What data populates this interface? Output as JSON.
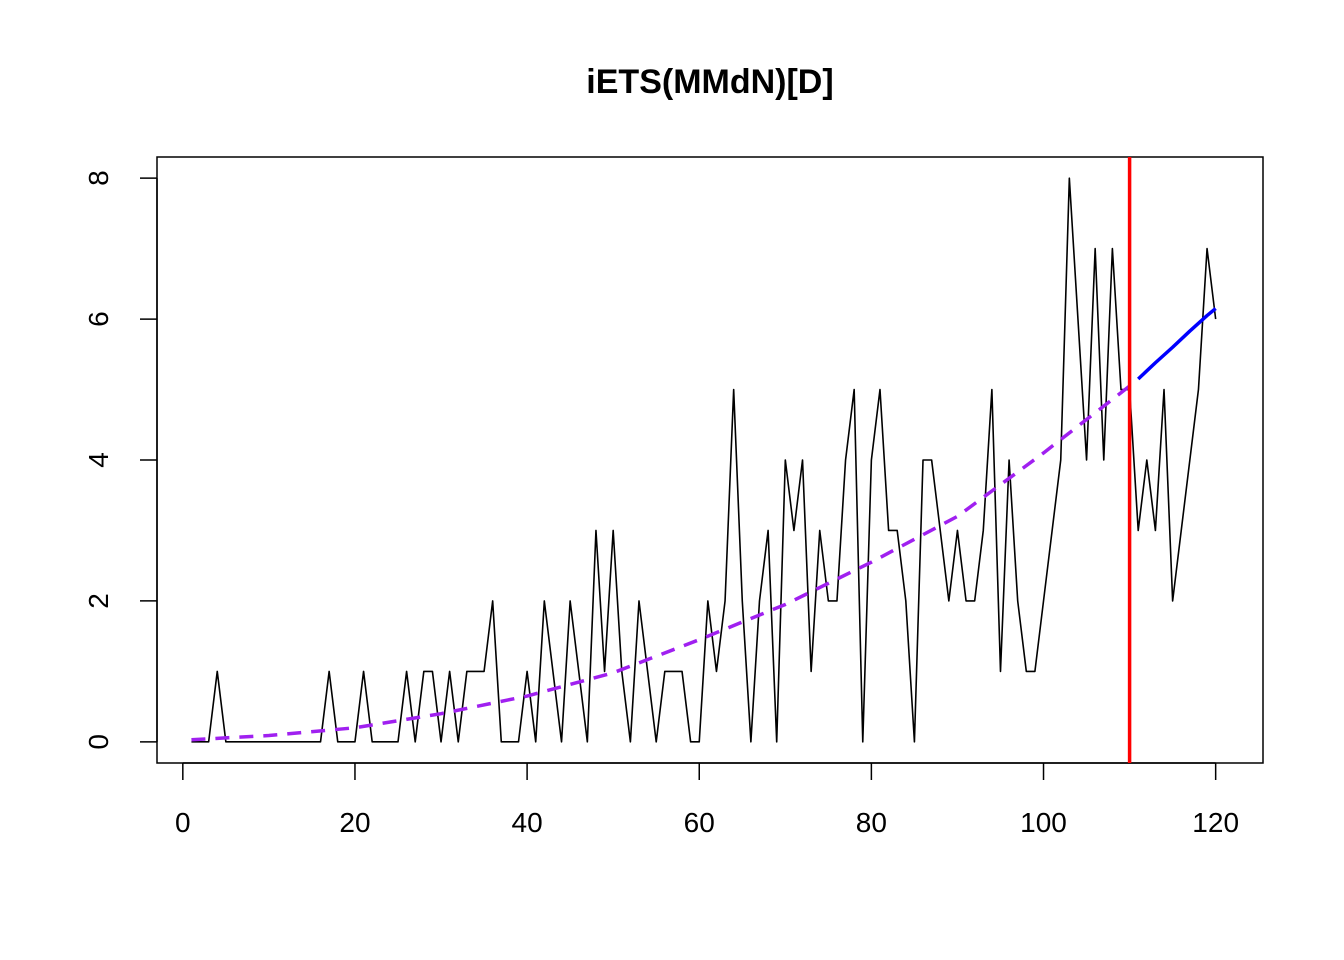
{
  "chart_data": {
    "type": "line",
    "title": "iETS(MMdN)[D]",
    "xlabel": "",
    "ylabel": "",
    "xlim": [
      -3,
      125.5
    ],
    "ylim": [
      -0.3,
      8.3
    ],
    "x_ticks": [
      0,
      20,
      40,
      60,
      80,
      100,
      120
    ],
    "y_ticks": [
      0,
      2,
      4,
      6,
      8
    ],
    "grid": false,
    "legend": "none",
    "series": [
      {
        "role": "actuals",
        "color": "#000000",
        "style": "solid",
        "x_start": 1,
        "values": [
          0,
          0,
          0,
          1,
          0,
          0,
          0,
          0,
          0,
          0,
          0,
          0,
          0,
          0,
          0,
          0,
          1,
          0,
          0,
          0,
          1,
          0,
          0,
          0,
          0,
          1,
          0,
          1,
          1,
          0,
          1,
          0,
          1,
          1,
          1,
          2,
          0,
          0,
          0,
          1,
          0,
          2,
          1,
          0,
          2,
          1,
          0,
          3,
          1,
          3,
          1,
          0,
          2,
          1,
          0,
          1,
          1,
          1,
          0,
          0,
          2,
          1,
          2,
          5,
          2,
          0,
          2,
          3,
          0,
          4,
          3,
          4,
          1,
          3,
          2,
          2,
          4,
          5,
          0,
          4,
          5,
          3,
          3,
          2,
          0,
          4,
          4,
          3,
          2,
          3,
          2,
          2,
          3,
          5,
          1,
          4,
          2,
          1,
          1,
          2,
          3,
          4,
          8,
          6,
          4,
          7,
          4,
          7,
          5,
          5,
          3,
          4,
          3,
          5,
          2,
          3,
          4,
          5,
          7,
          6
        ]
      },
      {
        "role": "fitted",
        "color": "#a020f0",
        "style": "dashed",
        "x": [
          1,
          10,
          20,
          30,
          40,
          50,
          60,
          70,
          80,
          90,
          100,
          110
        ],
        "values": [
          0.03,
          0.09,
          0.2,
          0.4,
          0.65,
          0.98,
          1.45,
          1.95,
          2.55,
          3.2,
          4.1,
          5.05
        ]
      },
      {
        "role": "forecast",
        "color": "#0000ff",
        "style": "solid",
        "x": [
          111,
          113,
          115,
          117,
          119,
          120
        ],
        "values": [
          5.15,
          5.38,
          5.6,
          5.83,
          6.05,
          6.15
        ]
      }
    ],
    "vline": {
      "x": 110,
      "color": "#ff0000"
    }
  }
}
